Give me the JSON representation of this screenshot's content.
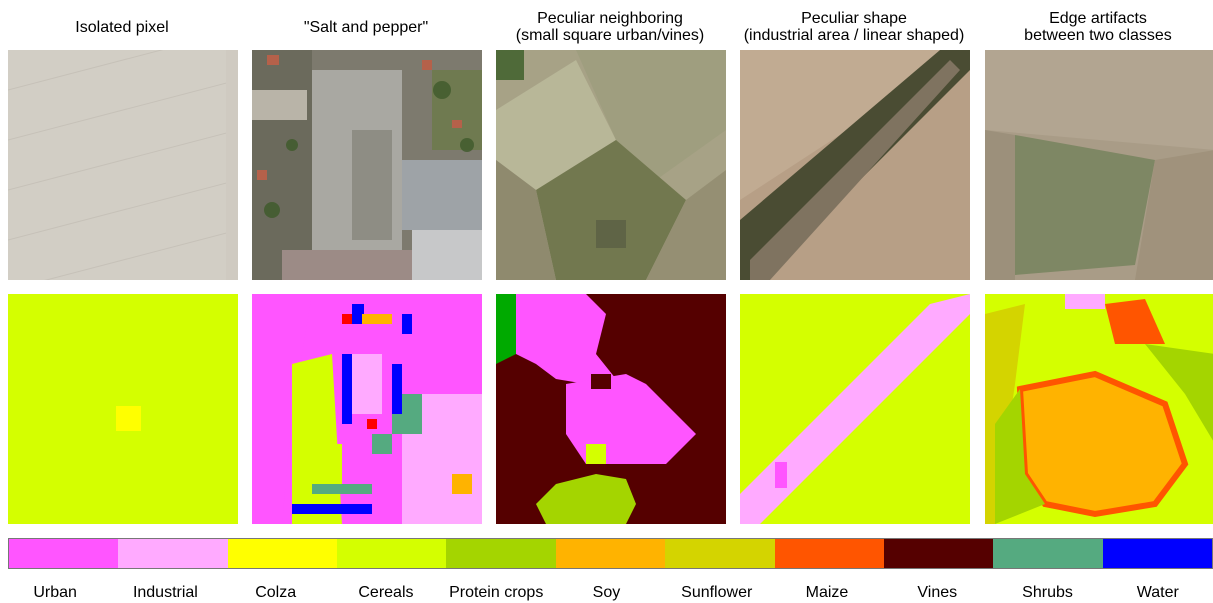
{
  "columns": [
    {
      "title_line1": "Isolated pixel",
      "title_line2": ""
    },
    {
      "title_line1": "\"Salt and pepper\"",
      "title_line2": ""
    },
    {
      "title_line1": "Peculiar neighboring",
      "title_line2": "(small square urban/vines)"
    },
    {
      "title_line1": "Peculiar shape",
      "title_line2": "(industrial area / linear shaped)"
    },
    {
      "title_line1": "Edge artifacts",
      "title_line2": "between two classes"
    }
  ],
  "legend": [
    {
      "label": "Urban",
      "color": "#ff55ff"
    },
    {
      "label": "Industrial",
      "color": "#ffaaff"
    },
    {
      "label": "Colza",
      "color": "#ffff00"
    },
    {
      "label": "Cereals",
      "color": "#d4ff00"
    },
    {
      "label": "Protein crops",
      "color": "#a4d500"
    },
    {
      "label": "Soy",
      "color": "#ffb300"
    },
    {
      "label": "Sunflower",
      "color": "#d4d400"
    },
    {
      "label": "Maize",
      "color": "#ff5500"
    },
    {
      "label": "Vines",
      "color": "#550000"
    },
    {
      "label": "Shrubs",
      "color": "#55aa80"
    },
    {
      "label": "Water",
      "color": "#0000ff"
    }
  ]
}
